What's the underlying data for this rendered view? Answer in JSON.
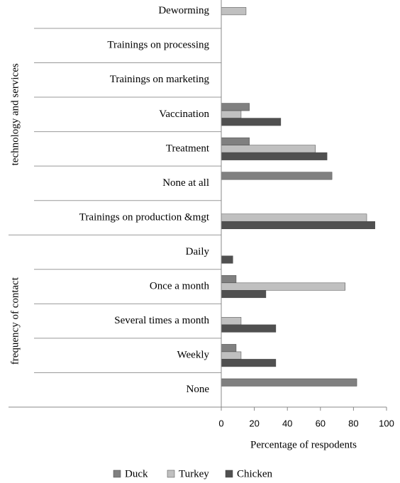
{
  "chart_data": {
    "type": "bar",
    "orientation": "horizontal",
    "groups": [
      {
        "name": "technology and services",
        "categories": [
          "Deworming",
          "Trainings on processing",
          "Trainings on marketing",
          "Vaccination",
          "Treatment",
          "None at all",
          "Trainings on production &mgt"
        ]
      },
      {
        "name": "frequency of contact",
        "categories": [
          "Daily",
          "Once a month",
          "Several times a month",
          "Weekly",
          "None"
        ]
      }
    ],
    "series": [
      {
        "name": "Duck",
        "color": "#808080",
        "values": [
          0,
          0,
          0,
          17,
          17,
          67,
          0,
          0,
          9,
          0,
          9,
          82
        ]
      },
      {
        "name": "Turkey",
        "color": "#c0c0c0",
        "values": [
          15,
          0,
          0,
          12,
          57,
          0,
          88,
          0,
          75,
          12,
          12,
          0
        ]
      },
      {
        "name": "Chicken",
        "color": "#505050",
        "values": [
          0,
          0,
          0,
          36,
          64,
          0,
          93,
          7,
          27,
          33,
          33,
          0
        ]
      }
    ],
    "xlabel": "Percentage of respodents",
    "xlim": [
      0,
      100
    ],
    "xticks": [
      0,
      20,
      40,
      60,
      80,
      100
    ],
    "legend": "bottom"
  }
}
